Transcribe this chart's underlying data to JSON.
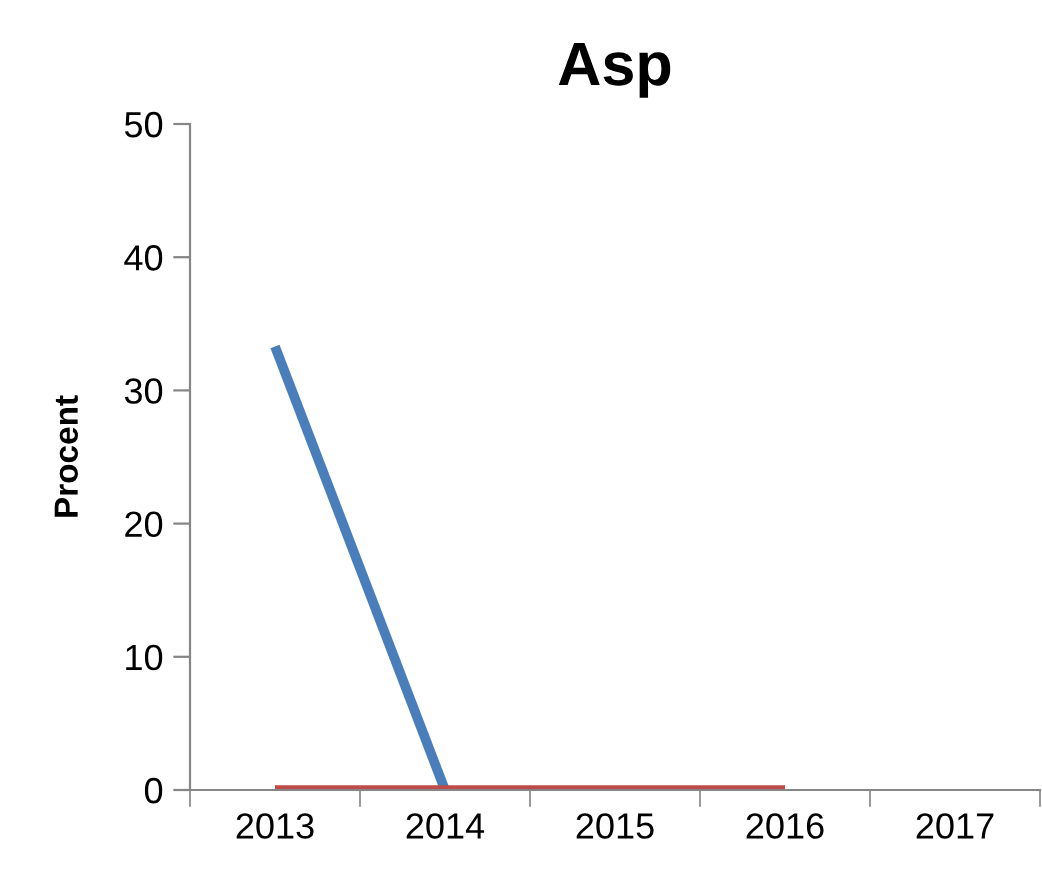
{
  "chart_data": {
    "type": "line",
    "title": "Asp",
    "ylabel": "Procent",
    "categories": [
      "2013",
      "2014",
      "2015",
      "2016",
      "2017"
    ],
    "series": [
      {
        "color": "#4a7ebb",
        "values": [
          33.3,
          0,
          null,
          null,
          null
        ]
      },
      {
        "color": "#be4b48",
        "values": [
          0,
          0,
          0,
          0,
          null
        ]
      }
    ],
    "ylim": [
      0,
      50
    ],
    "yticks": [
      0,
      10,
      20,
      30,
      40,
      50
    ],
    "grid": false,
    "legend": false,
    "marker": "none",
    "line_style": "solid"
  }
}
